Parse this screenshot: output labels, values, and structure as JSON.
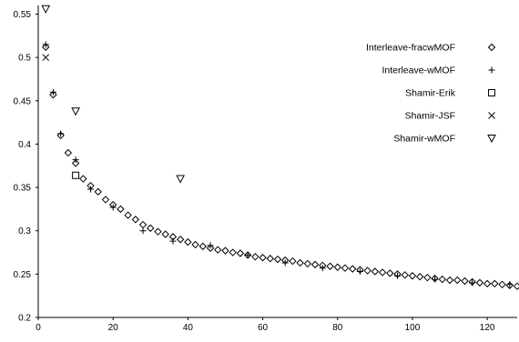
{
  "chart_data": {
    "type": "scatter",
    "title": "",
    "xlabel": "",
    "ylabel": "",
    "xlim": [
      0,
      128
    ],
    "ylim": [
      0.2,
      0.56
    ],
    "xticks": [
      0,
      20,
      40,
      60,
      80,
      100,
      120
    ],
    "yticks": [
      0.2,
      0.25,
      0.3,
      0.35,
      0.4,
      0.45,
      0.5,
      0.55
    ],
    "ytick_labels": [
      "0.2",
      "0.25",
      "0.3",
      "0.35",
      "0.4",
      "0.45",
      "0.5",
      "0.55"
    ],
    "grid": false,
    "legend_position": "top-right",
    "series": [
      {
        "name": "Interleave-fracwMOF",
        "marker": "diamond",
        "points": [
          [
            2,
            0.512
          ],
          [
            4,
            0.457
          ],
          [
            6,
            0.41
          ],
          [
            8,
            0.39
          ],
          [
            10,
            0.378
          ],
          [
            12,
            0.36
          ],
          [
            14,
            0.352
          ],
          [
            16,
            0.345
          ],
          [
            18,
            0.336
          ],
          [
            20,
            0.33
          ],
          [
            22,
            0.325
          ],
          [
            24,
            0.318
          ],
          [
            26,
            0.313
          ],
          [
            28,
            0.307
          ],
          [
            30,
            0.303
          ],
          [
            32,
            0.299
          ],
          [
            34,
            0.296
          ],
          [
            36,
            0.293
          ],
          [
            38,
            0.29
          ],
          [
            40,
            0.287
          ],
          [
            42,
            0.284
          ],
          [
            44,
            0.282
          ],
          [
            46,
            0.28
          ],
          [
            48,
            0.278
          ],
          [
            50,
            0.277
          ],
          [
            52,
            0.275
          ],
          [
            54,
            0.274
          ],
          [
            56,
            0.272
          ],
          [
            58,
            0.27
          ],
          [
            60,
            0.269
          ],
          [
            62,
            0.268
          ],
          [
            64,
            0.267
          ],
          [
            66,
            0.266
          ],
          [
            68,
            0.265
          ],
          [
            70,
            0.263
          ],
          [
            72,
            0.262
          ],
          [
            74,
            0.261
          ],
          [
            76,
            0.26
          ],
          [
            78,
            0.259
          ],
          [
            80,
            0.258
          ],
          [
            82,
            0.257
          ],
          [
            84,
            0.256
          ],
          [
            86,
            0.255
          ],
          [
            88,
            0.254
          ],
          [
            90,
            0.253
          ],
          [
            92,
            0.252
          ],
          [
            94,
            0.251
          ],
          [
            96,
            0.25
          ],
          [
            98,
            0.249
          ],
          [
            100,
            0.248
          ],
          [
            102,
            0.247
          ],
          [
            104,
            0.246
          ],
          [
            106,
            0.245
          ],
          [
            108,
            0.244
          ],
          [
            110,
            0.243
          ],
          [
            112,
            0.243
          ],
          [
            114,
            0.242
          ],
          [
            116,
            0.241
          ],
          [
            118,
            0.24
          ],
          [
            120,
            0.239
          ],
          [
            122,
            0.239
          ],
          [
            124,
            0.238
          ],
          [
            126,
            0.237
          ],
          [
            128,
            0.236
          ]
        ]
      },
      {
        "name": "Interleave-wMOF",
        "marker": "plus",
        "points": [
          [
            2,
            0.515
          ],
          [
            4,
            0.46
          ],
          [
            6,
            0.412
          ],
          [
            10,
            0.382
          ],
          [
            14,
            0.348
          ],
          [
            20,
            0.327
          ],
          [
            28,
            0.3
          ],
          [
            36,
            0.288
          ],
          [
            46,
            0.283
          ],
          [
            56,
            0.272
          ],
          [
            66,
            0.263
          ],
          [
            76,
            0.257
          ],
          [
            86,
            0.253
          ],
          [
            96,
            0.248
          ],
          [
            106,
            0.244
          ],
          [
            116,
            0.24
          ],
          [
            126,
            0.238
          ]
        ]
      },
      {
        "name": "Shamir-Erik",
        "marker": "square",
        "points": [
          [
            10,
            0.364
          ]
        ]
      },
      {
        "name": "Shamir-JSF",
        "marker": "x",
        "points": [
          [
            2,
            0.5
          ]
        ]
      },
      {
        "name": "Shamir-wMOF",
        "marker": "triangle-down",
        "points": [
          [
            2,
            0.556
          ],
          [
            10,
            0.438
          ],
          [
            38,
            0.36
          ]
        ]
      }
    ]
  }
}
